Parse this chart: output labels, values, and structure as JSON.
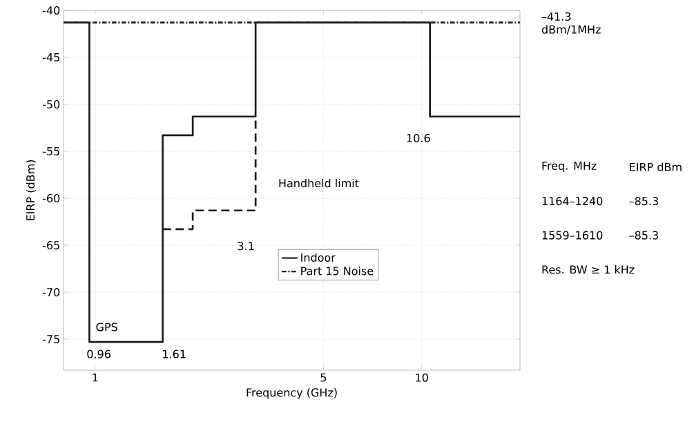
{
  "chart_data": {
    "type": "step",
    "xlabel": "Frequency (GHz)",
    "ylabel": "EIRP (dBm)",
    "log": "x",
    "xlim": [
      0.8,
      20
    ],
    "ylim": [
      -78.3,
      -40
    ],
    "xticks": [
      1,
      5,
      10
    ],
    "yticks": [
      -75,
      -70,
      -65,
      -60,
      -55,
      -50,
      -45,
      -40
    ],
    "grid": true,
    "legend": "bottom right",
    "series": [
      {
        "name": "Indoor",
        "color": "#1a1a1a",
        "line_style": "solid",
        "x": [
          0.8,
          0.96,
          1.61,
          1.99,
          3.1,
          10.6,
          20
        ],
        "values": [
          -41.3,
          -75.3,
          -53.3,
          -51.3,
          -41.3,
          -51.3,
          -51.3
        ]
      },
      {
        "name": "Part 15 Noise",
        "type": "line",
        "color": "#1a1a1a",
        "line_style": "dashdot",
        "x": [
          0.8,
          20
        ],
        "values": [
          -41.3,
          -41.3
        ]
      },
      {
        "color": "#1a1a1a",
        "line_style": "dashed",
        "x": [
          1.61,
          1.99,
          3.1
        ],
        "values": [
          -63.3,
          -61.3,
          -51.3
        ]
      }
    ],
    "annotations": [
      "Handheld limit",
      "GPS",
      "0.96",
      "1.61",
      "3.1",
      "10.6",
      "–41.3 dBm/1MHz",
      "Freq. MHz",
      "EIRP dBm",
      "1164–1240",
      "–85.3",
      "1559–1610",
      "–85.3",
      "Res. BW ≥ 1 kHz"
    ]
  }
}
